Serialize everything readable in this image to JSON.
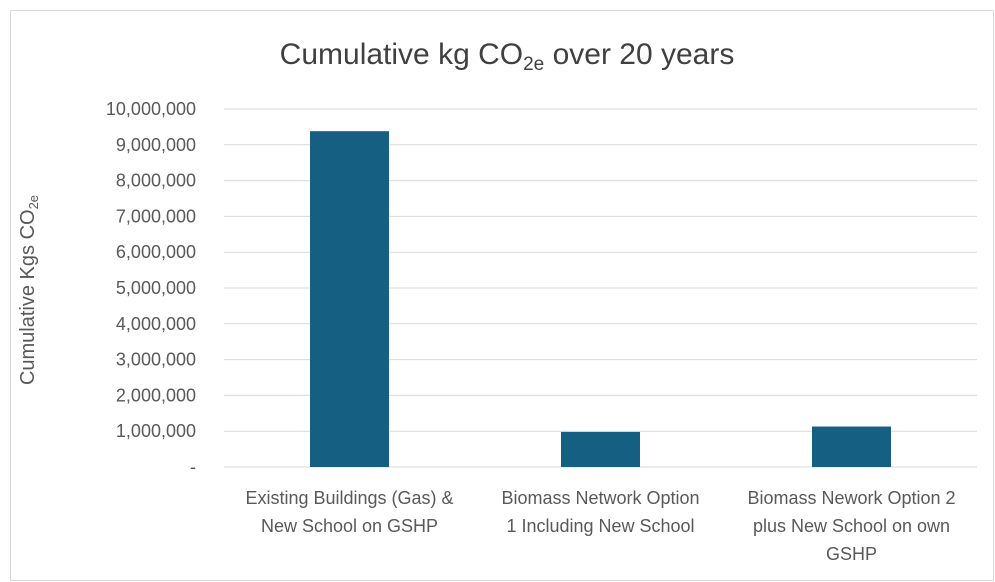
{
  "chart_data": {
    "type": "bar",
    "title": "Cumulative kg CO",
    "title_sub": "2e",
    "title_suffix": " over 20 years",
    "ylabel": "Cumulative Kgs CO",
    "ylabel_sub": "2e",
    "categories": [
      [
        "Existing Buildings (Gas) &",
        "New School on GSHP"
      ],
      [
        "Biomass Network Option",
        "1 Including New School"
      ],
      [
        "Biomass Nework Option 2",
        "plus New School on own",
        "GSHP"
      ]
    ],
    "values": [
      9380000,
      980000,
      1130000
    ],
    "ylim": [
      0,
      10000000
    ],
    "yticks": [
      0,
      1000000,
      2000000,
      3000000,
      4000000,
      5000000,
      6000000,
      7000000,
      8000000,
      9000000,
      10000000
    ],
    "ytick_labels": [
      "-",
      "1,000,000",
      "2,000,000",
      "3,000,000",
      "4,000,000",
      "5,000,000",
      "6,000,000",
      "7,000,000",
      "8,000,000",
      "9,000,000",
      "10,000,000"
    ],
    "grid": true,
    "bar_color": "#156082",
    "grid_color": "#d9d9d9",
    "text_color": "#595959"
  }
}
